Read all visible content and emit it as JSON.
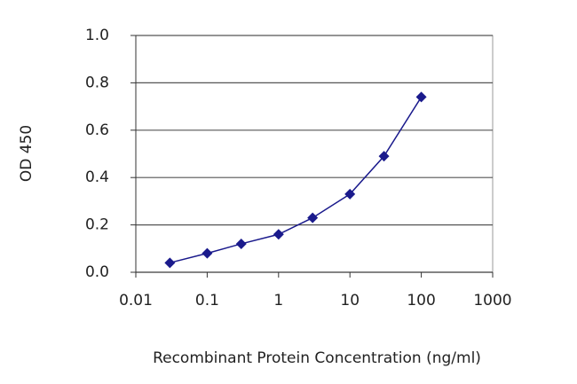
{
  "chart_data": {
    "type": "line",
    "x_label": "Recombinant Protein Concentration  (ng/ml)",
    "y_label": "OD 450",
    "x": [
      0.03,
      0.1,
      0.3,
      1,
      3,
      10,
      30,
      100
    ],
    "values": [
      0.04,
      0.08,
      0.12,
      0.16,
      0.23,
      0.33,
      0.49,
      0.74
    ],
    "color": "#1a1a8c",
    "x_log": true,
    "xlim": [
      0.01,
      1000
    ],
    "xticks": [
      0.01,
      0.1,
      1,
      10,
      100,
      1000
    ],
    "ylim": [
      0,
      1
    ],
    "yticks": [
      {
        "value": 0,
        "label": "0.0"
      },
      0.2,
      0.4,
      0.6,
      0.8,
      {
        "value": 1,
        "label": "1.0"
      }
    ],
    "grid": true
  }
}
